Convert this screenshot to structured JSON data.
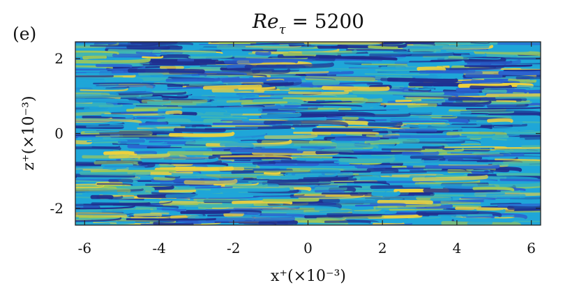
{
  "chart_data": {
    "type": "heatmap",
    "panel_label": "(e)",
    "title": "Reτ = 5200",
    "title_parts": {
      "main": "Re",
      "subscript": "τ",
      "rest": " = 5200"
    },
    "xlabel": "x⁺(×10⁻³)",
    "ylabel": "z⁺(×10⁻³)",
    "xlim": [
      -6.25,
      6.25
    ],
    "ylim": [
      -2.45,
      2.45
    ],
    "xticks": [
      -6,
      -4,
      -2,
      0,
      2,
      4,
      6
    ],
    "xtick_labels": [
      "-6",
      "-4",
      "-2",
      "0",
      "2",
      "4",
      "6"
    ],
    "yticks": [
      -2,
      0,
      2
    ],
    "ytick_labels": [
      "-2",
      "0",
      "2"
    ],
    "colormap": [
      "#1f2f8f",
      "#2a62d0",
      "#1fa6d8",
      "#45b8ae",
      "#9cc75a",
      "#f0d23c"
    ],
    "field_description": "streamwise elongated streaky turbulent field"
  }
}
